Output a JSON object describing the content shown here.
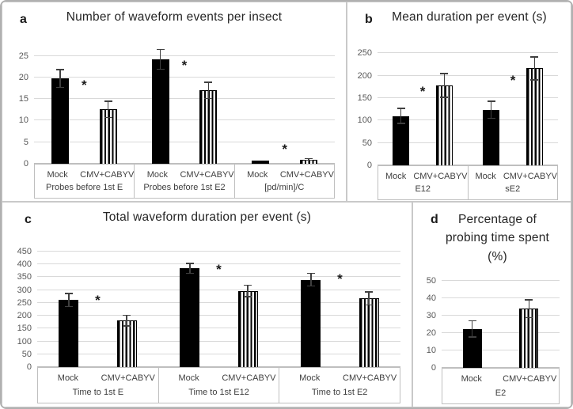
{
  "figure": {
    "description": "Four-panel bar chart figure comparing Mock vs CMV+CABYV treatments",
    "series_names": [
      "Mock",
      "CMV+CABYV"
    ]
  },
  "colors": {
    "bar_solid": "#000000",
    "bar_stripe": "#000000",
    "gridline": "#d9d9d9",
    "panel_border": "#c9c9c9",
    "label_box_border": "#bfbfbf",
    "tick_text": "#595959",
    "category_text": "#3f3f3f",
    "title_text": "#262626",
    "error_bar": "#404040"
  },
  "chart_data": [
    {
      "type": "bar",
      "panel_label": "a",
      "title": "Number of waveform events per insect",
      "ylabel": "",
      "xlabel": "",
      "grid": true,
      "legend": "none",
      "yticks": [
        0,
        5,
        10,
        15,
        20,
        25
      ],
      "ylim": [
        0,
        27.5
      ],
      "groups": [
        {
          "category": "Probes before 1st E",
          "bars": [
            {
              "series": "Mock",
              "value": 19.8,
              "err": 2.2
            },
            {
              "series": "CMV+CABYV",
              "value": 12.6,
              "err": 2.0
            }
          ],
          "significance": {
            "marker": "*",
            "y": 17.8
          }
        },
        {
          "category": "Probes before 1st E2",
          "bars": [
            {
              "series": "Mock",
              "value": 24.2,
              "err": 2.4
            },
            {
              "series": "CMV+CABYV",
              "value": 17.0,
              "err": 2.0
            }
          ],
          "significance": {
            "marker": "*",
            "y": 22.3
          }
        },
        {
          "category": "[pd/min]/C",
          "bars": [
            {
              "series": "Mock",
              "value": 0.8,
              "err": 0
            },
            {
              "series": "CMV+CABYV",
              "value": 1.0,
              "err": 0.3
            }
          ],
          "significance": {
            "marker": "*",
            "y": 2.9
          }
        }
      ]
    },
    {
      "type": "bar",
      "panel_label": "b",
      "title": "Mean duration per event (s)",
      "ylabel": "",
      "xlabel": "",
      "grid": true,
      "legend": "none",
      "yticks": [
        0,
        50,
        100,
        150,
        200,
        250
      ],
      "ylim": [
        0,
        275
      ],
      "groups": [
        {
          "category": "E12",
          "bars": [
            {
              "series": "Mock",
              "value": 110,
              "err": 18
            },
            {
              "series": "CMV+CABYV",
              "value": 178,
              "err": 28
            }
          ],
          "significance": {
            "marker": "*",
            "y": 160
          }
        },
        {
          "category": "sE2",
          "bars": [
            {
              "series": "Mock",
              "value": 124,
              "err": 20
            },
            {
              "series": "CMV+CABYV",
              "value": 216,
              "err": 27
            }
          ],
          "significance": {
            "marker": "*",
            "y": 186
          }
        }
      ]
    },
    {
      "type": "bar",
      "panel_label": "c",
      "title": "Total waveform duration per event (s)",
      "ylabel": "",
      "xlabel": "",
      "grid": true,
      "legend": "none",
      "yticks": [
        0,
        50,
        100,
        150,
        200,
        250,
        300,
        350,
        400,
        450
      ],
      "ylim": [
        0,
        480
      ],
      "groups": [
        {
          "category": "Time to 1st E",
          "bars": [
            {
              "series": "Mock",
              "value": 261,
              "err": 28
            },
            {
              "series": "CMV+CABYV",
              "value": 181,
              "err": 23
            }
          ],
          "significance": {
            "marker": "*",
            "y": 252
          }
        },
        {
          "category": "Time to 1st E12",
          "bars": [
            {
              "series": "Mock",
              "value": 384,
              "err": 22
            },
            {
              "series": "CMV+CABYV",
              "value": 296,
              "err": 25
            }
          ],
          "significance": {
            "marker": "*",
            "y": 372
          }
        },
        {
          "category": "Time to 1st E2",
          "bars": [
            {
              "series": "Mock",
              "value": 340,
              "err": 27
            },
            {
              "series": "CMV+CABYV",
              "value": 267,
              "err": 28
            }
          ],
          "significance": {
            "marker": "*",
            "y": 334
          }
        }
      ]
    },
    {
      "type": "bar",
      "panel_label": "d",
      "title": "Percentage of probing time spent (%)",
      "ylabel": "",
      "xlabel": "",
      "grid": true,
      "legend": "none",
      "yticks": [
        0,
        10,
        20,
        30,
        40,
        50
      ],
      "ylim": [
        0,
        56
      ],
      "groups": [
        {
          "category": "E2",
          "bars": [
            {
              "series": "Mock",
              "value": 22.5,
              "err": 5
            },
            {
              "series": "CMV+CABYV",
              "value": 34,
              "err": 5.5
            }
          ],
          "significance": null
        }
      ]
    }
  ]
}
